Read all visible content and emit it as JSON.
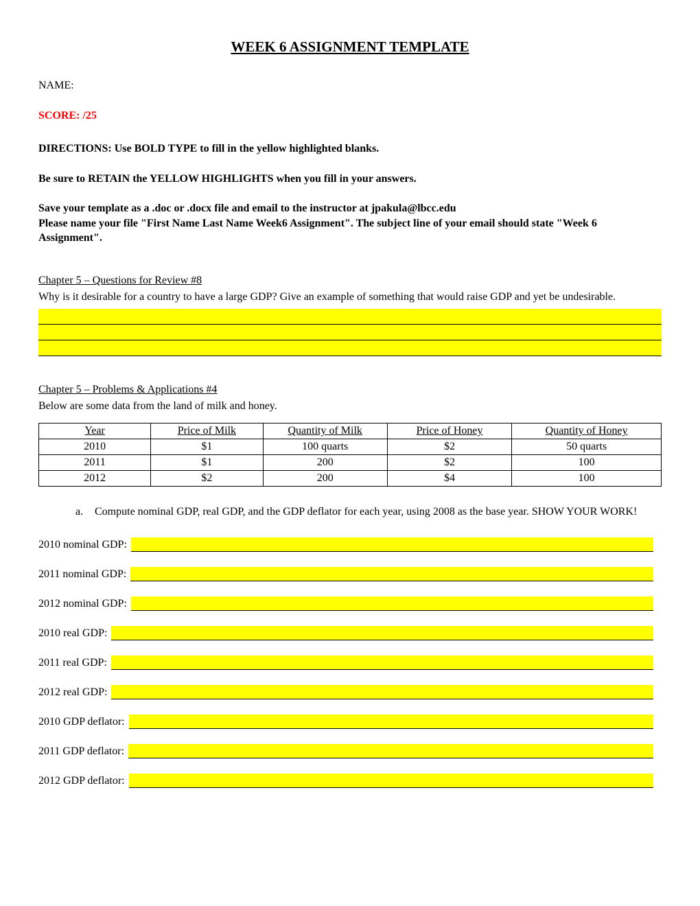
{
  "title": "WEEK 6 ASSIGNMENT TEMPLATE",
  "name_label": "NAME:",
  "score_label": "SCORE:  /25",
  "instructions": {
    "line1": "DIRECTIONS: Use BOLD TYPE to fill in the yellow highlighted blanks.",
    "line2": "Be sure to RETAIN the YELLOW HIGHLIGHTS when you fill in your answers.",
    "line3": "Save your template as a .doc or .docx file and email to the instructor at jpakula@lbcc.edu\nPlease name your file \"First Name Last Name Week6 Assignment\".  The subject line of your email should state \"Week 6 Assignment\"."
  },
  "section1": {
    "heading": "Chapter 5 – Questions for Review #8",
    "question": "Why is it desirable for a country to have a large GDP?  Give an example of something that would raise GDP and yet be undesirable.",
    "blank_lines": 3
  },
  "section2": {
    "heading": "Chapter 5 – Problems & Applications #4",
    "intro": "Below are some data from the land of milk and honey.",
    "table": {
      "columns": [
        "Year",
        "Price of Milk",
        "Quantity of Milk",
        "Price of Honey",
        "Quantity of Honey"
      ],
      "rows": [
        [
          "2010",
          "$1",
          "100 quarts",
          "$2",
          "50 quarts"
        ],
        [
          "2011",
          "$1",
          "200",
          "$2",
          "100"
        ],
        [
          "2012",
          "$2",
          "200",
          "$4",
          "100"
        ]
      ],
      "col_widths_pct": [
        18,
        18,
        20,
        20,
        24
      ],
      "border_color": "#000000",
      "background_color": "#ffffff"
    },
    "sub_q": {
      "letter": "a.",
      "text": "Compute nominal GDP, real GDP, and the GDP deflator for each year, using 2008 as the base year. SHOW YOUR WORK!"
    },
    "answers": [
      "2010 nominal GDP:",
      "2011 nominal GDP:",
      "2012 nominal GDP:",
      "2010 real GDP:",
      "2011 real GDP:",
      "2012 real GDP:",
      "2010 GDP deflator:",
      "2011 GDP deflator:",
      "2012 GDP deflator:"
    ]
  },
  "highlight_color": "#ffff00",
  "text_color": "#000000",
  "score_color": "#ff0000"
}
